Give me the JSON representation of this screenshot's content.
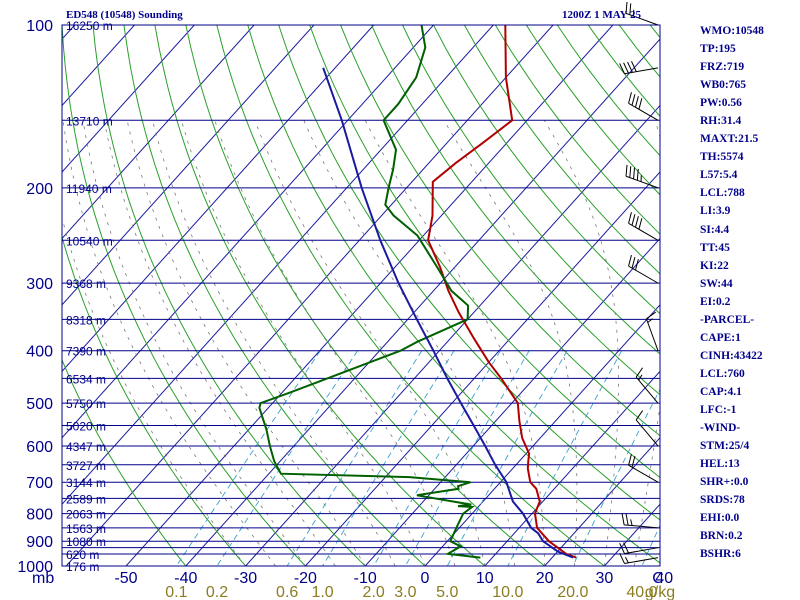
{
  "header": {
    "title": "ED548 (10548) Sounding",
    "datetime": "1200Z  1 MAY 25"
  },
  "colors": {
    "isobar": "#00008b",
    "isotherm": "#1a1aa0",
    "dry_adiabat": "#2aa02a",
    "moist_adiabat": "#7a7a7a",
    "mixing_ratio": "#3aa0d0",
    "temperature": "#b00000",
    "dewpoint": "#006000",
    "parcel": "#1a1aa0",
    "axis_text": "#00008b",
    "mix_label": "#8b7d20"
  },
  "indices": [
    "WMO:10548",
    "TP:195",
    "FRZ:719",
    "WB0:765",
    "PW:0.56",
    "RH:31.4",
    "MAXT:21.5",
    "TH:5574",
    "L57:5.4",
    "LCL:788",
    "LI:3.9",
    "SI:4.4",
    "TT:45",
    "KI:22",
    "SW:44",
    "EI:0.2",
    "-PARCEL-",
    "CAPE:1",
    "CINH:43422",
    "LCL:760",
    "CAP:4.1",
    "LFC:-1",
    "-WIND-",
    "STM:25/4",
    "HEL:13",
    "SHR+:0.0",
    "SRDS:78",
    "EHI:0.0",
    "BRN:0.2",
    "BSHR:6"
  ],
  "chart_data": {
    "type": "line",
    "title": "ED548 (10548) Sounding",
    "subtitle": "1200Z  1 MAY 25",
    "xlabel": "",
    "ylabel": "mb",
    "y_scale": "log",
    "y_inverted": true,
    "ylim": [
      1000,
      100
    ],
    "xlim": [
      -50,
      50
    ],
    "skew": true,
    "pressure_ticks": [
      100,
      200,
      300,
      400,
      500,
      600,
      700,
      800,
      900,
      1000
    ],
    "pressure_tick_labels": [
      "100",
      "200",
      "300",
      "400",
      "500",
      "600",
      "700",
      "800",
      "900",
      "1000"
    ],
    "isobars_mb": [
      100,
      150,
      200,
      250,
      300,
      350,
      400,
      450,
      500,
      550,
      600,
      650,
      700,
      750,
      800,
      850,
      900,
      925,
      950,
      1000
    ],
    "temperature_ticks": [
      -50,
      -40,
      -30,
      -20,
      -10,
      0,
      10,
      20,
      30,
      40
    ],
    "temperature_tick_labels": [
      "-50",
      "-40",
      "-30",
      "-20",
      "-10",
      "0",
      "10",
      "20",
      "30",
      "40"
    ],
    "temperature_unit": "C",
    "mixing_ratio_ticks": [
      0.1,
      0.2,
      0.6,
      1.0,
      2.0,
      3.0,
      5.0,
      10.0,
      20.0,
      40.0
    ],
    "mixing_ratio_tick_labels": [
      "0.1",
      "0.2",
      "0.6",
      "1.0",
      "2.0",
      "3.0",
      "5.0",
      "10.0",
      "20.0",
      "40.0"
    ],
    "mixing_ratio_unit": "g/kg",
    "height_labels": [
      {
        "p": 100,
        "label": "16250 m"
      },
      {
        "p": 150,
        "label": "13710 m"
      },
      {
        "p": 200,
        "label": "11940 m"
      },
      {
        "p": 250,
        "label": "10540 m"
      },
      {
        "p": 300,
        "label": "9368 m"
      },
      {
        "p": 350,
        "label": "8318 m"
      },
      {
        "p": 400,
        "label": "7390 m"
      },
      {
        "p": 450,
        "label": "6534 m"
      },
      {
        "p": 500,
        "label": "5750 m"
      },
      {
        "p": 550,
        "label": "5020 m"
      },
      {
        "p": 600,
        "label": "4347 m"
      },
      {
        "p": 650,
        "label": "3727 m"
      },
      {
        "p": 700,
        "label": "3144 m"
      },
      {
        "p": 750,
        "label": "2589 m"
      },
      {
        "p": 800,
        "label": "2063 m"
      },
      {
        "p": 850,
        "label": "1563 m"
      },
      {
        "p": 900,
        "label": "1080 m"
      },
      {
        "p": 950,
        "label": "620 m"
      },
      {
        "p": 1000,
        "label": "176 m"
      }
    ],
    "series": [
      {
        "key": "temperature",
        "points": [
          [
            965,
            24.0
          ],
          [
            950,
            21.8
          ],
          [
            900,
            17.0
          ],
          [
            850,
            13.0
          ],
          [
            800,
            10.5
          ],
          [
            780,
            10.0
          ],
          [
            760,
            9.5
          ],
          [
            720,
            7.0
          ],
          [
            700,
            5.0
          ],
          [
            660,
            2.5
          ],
          [
            640,
            1.5
          ],
          [
            620,
            0.5
          ],
          [
            580,
            -3.0
          ],
          [
            540,
            -6.0
          ],
          [
            500,
            -9.0
          ],
          [
            480,
            -11.5
          ],
          [
            450,
            -15.5
          ],
          [
            420,
            -20.0
          ],
          [
            380,
            -26.0
          ],
          [
            340,
            -32.5
          ],
          [
            310,
            -37.5
          ],
          [
            280,
            -42.5
          ],
          [
            250,
            -48.5
          ],
          [
            225,
            -51.5
          ],
          [
            195,
            -56.5
          ],
          [
            180,
            -55.5
          ],
          [
            165,
            -54.0
          ],
          [
            150,
            -52.5
          ],
          [
            125,
            -60.0
          ],
          [
            100,
            -68.0
          ]
        ]
      },
      {
        "key": "dewpoint",
        "points": [
          [
            965,
            8.0
          ],
          [
            950,
            2.0
          ],
          [
            920,
            3.0
          ],
          [
            900,
            0.5
          ],
          [
            850,
            -0.5
          ],
          [
            800,
            -1.5
          ],
          [
            778,
            -1.0
          ],
          [
            775,
            -3.5
          ],
          [
            770,
            -1.5
          ],
          [
            760,
            -5.0
          ],
          [
            740,
            -12.0
          ],
          [
            720,
            -6.0
          ],
          [
            712,
            -6.5
          ],
          [
            700,
            -5.0
          ],
          [
            685,
            -16.0
          ],
          [
            675,
            -38.0
          ],
          [
            640,
            -41.0
          ],
          [
            600,
            -44.0
          ],
          [
            560,
            -47.0
          ],
          [
            510,
            -51.5
          ],
          [
            500,
            -52.0
          ],
          [
            480,
            -49.0
          ],
          [
            440,
            -43.0
          ],
          [
            400,
            -36.5
          ],
          [
            385,
            -35.0
          ],
          [
            350,
            -30.0
          ],
          [
            330,
            -32.0
          ],
          [
            310,
            -37.0
          ],
          [
            280,
            -43.0
          ],
          [
            245,
            -51.0
          ],
          [
            225,
            -58.0
          ],
          [
            215,
            -61.0
          ],
          [
            200,
            -63.0
          ],
          [
            185,
            -65.0
          ],
          [
            170,
            -67.5
          ],
          [
            150,
            -74.0
          ],
          [
            140,
            -74.0
          ],
          [
            125,
            -75.0
          ],
          [
            110,
            -78.0
          ],
          [
            100,
            -82.0
          ]
        ]
      },
      {
        "key": "parcel",
        "points": [
          [
            965,
            23.5
          ],
          [
            940,
            20.0
          ],
          [
            900,
            16.0
          ],
          [
            870,
            14.0
          ],
          [
            850,
            12.0
          ],
          [
            800,
            8.5
          ],
          [
            760,
            5.0
          ],
          [
            700,
            1.0
          ],
          [
            650,
            -3.5
          ],
          [
            600,
            -8.0
          ],
          [
            550,
            -13.0
          ],
          [
            500,
            -18.5
          ],
          [
            450,
            -24.5
          ],
          [
            400,
            -31.0
          ],
          [
            350,
            -38.5
          ],
          [
            300,
            -47.0
          ],
          [
            250,
            -56.5
          ],
          [
            200,
            -67.5
          ],
          [
            150,
            -81.0
          ],
          [
            120,
            -92.0
          ]
        ]
      }
    ],
    "winds": [
      {
        "p": 965,
        "dir": 260,
        "kt": 15
      },
      {
        "p": 925,
        "dir": 260,
        "kt": 20
      },
      {
        "p": 850,
        "dir": 275,
        "kt": 25
      },
      {
        "p": 700,
        "dir": 300,
        "kt": 20
      },
      {
        "p": 600,
        "dir": 320,
        "kt": 10
      },
      {
        "p": 500,
        "dir": 320,
        "kt": 15
      },
      {
        "p": 400,
        "dir": 340,
        "kt": 15
      },
      {
        "p": 300,
        "dir": 300,
        "kt": 30
      },
      {
        "p": 250,
        "dir": 300,
        "kt": 40
      },
      {
        "p": 200,
        "dir": 290,
        "kt": 45
      },
      {
        "p": 150,
        "dir": 300,
        "kt": 40
      },
      {
        "p": 120,
        "dir": 260,
        "kt": 40
      },
      {
        "p": 100,
        "dir": 290,
        "kt": 25
      }
    ]
  }
}
